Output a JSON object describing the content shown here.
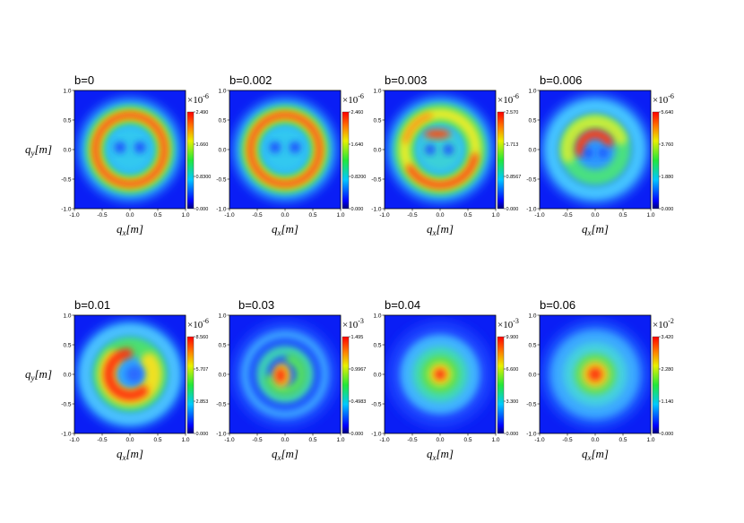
{
  "chart_data": [
    {
      "type": "heatmap",
      "title": "b=0",
      "xlabel": "q_x[m]",
      "ylabel": "q_y[m]",
      "xlim": [
        -1.0,
        1.0
      ],
      "ylim": [
        -1.0,
        1.0
      ],
      "x_ticks": [
        "-1.0",
        "-0.5",
        "0.0",
        "0.5",
        "1.0"
      ],
      "y_ticks": [
        "1.0",
        "0.5",
        "0.0",
        "-0.5",
        "-1.0"
      ],
      "colorbar": {
        "multiplier": "×10",
        "exponent": "-6",
        "ticks": [
          "2.490",
          "1.660",
          "0.8300",
          "0.000"
        ],
        "max": 2.49
      },
      "pattern": "ring with two inner spots"
    },
    {
      "type": "heatmap",
      "title": "b=0.002",
      "xlabel": "q_x[m]",
      "ylabel": "",
      "xlim": [
        -1.0,
        1.0
      ],
      "ylim": [
        -1.0,
        1.0
      ],
      "x_ticks": [
        "-1.0",
        "-0.5",
        "0.0",
        "0.5",
        "1.0"
      ],
      "y_ticks": [
        "1.0",
        "0.5",
        "0.0",
        "-0.5",
        "-1.0"
      ],
      "colorbar": {
        "multiplier": "×10",
        "exponent": "-6",
        "ticks": [
          "2.460",
          "1.640",
          "0.8200",
          "0.000"
        ],
        "max": 2.46
      },
      "pattern": "ring with two inner spots"
    },
    {
      "type": "heatmap",
      "title": "b=0.003",
      "xlabel": "q_x[m]",
      "ylabel": "",
      "xlim": [
        -1.0,
        1.0
      ],
      "ylim": [
        -1.0,
        1.0
      ],
      "x_ticks": [
        "-1.0",
        "-0.5",
        "0.0",
        "0.5",
        "1.0"
      ],
      "y_ticks": [
        "1.0",
        "0.5",
        "0.0",
        "-0.5",
        "-1.0"
      ],
      "colorbar": {
        "multiplier": "×10",
        "exponent": "-6",
        "ticks": [
          "2.570",
          "1.713",
          "0.8567",
          "0.000"
        ],
        "max": 2.57
      },
      "pattern": "distorted ring"
    },
    {
      "type": "heatmap",
      "title": "b=0.006",
      "xlabel": "q_x[m]",
      "ylabel": "",
      "xlim": [
        -1.0,
        1.0
      ],
      "ylim": [
        -1.0,
        1.0
      ],
      "x_ticks": [
        "-1.0",
        "-0.5",
        "0.0",
        "0.5",
        "1.0"
      ],
      "y_ticks": [
        "1.0",
        "0.5",
        "0.0",
        "-0.5",
        "-1.0"
      ],
      "colorbar": {
        "multiplier": "×10",
        "exponent": "-6",
        "ticks": [
          "5.640",
          "3.760",
          "1.880",
          "0.000"
        ],
        "max": 5.64
      },
      "pattern": "spiral"
    },
    {
      "type": "heatmap",
      "title": "b=0.01",
      "xlabel": "q_x[m]",
      "ylabel": "q_y[m]",
      "xlim": [
        -1.0,
        1.0
      ],
      "ylim": [
        -1.0,
        1.0
      ],
      "x_ticks": [
        "-1.0",
        "-0.5",
        "0.0",
        "0.5",
        "1.0"
      ],
      "y_ticks": [
        "1.0",
        "0.5",
        "0.0",
        "-0.5",
        "-1.0"
      ],
      "colorbar": {
        "multiplier": "×10",
        "exponent": "-6",
        "ticks": [
          "8.560",
          "5.707",
          "2.853",
          "0.000"
        ],
        "max": 8.56
      },
      "pattern": "crescent"
    },
    {
      "type": "heatmap",
      "title": "b=0.03",
      "xlabel": "q_x[m]",
      "ylabel": "",
      "xlim": [
        -1.0,
        1.0
      ],
      "ylim": [
        -1.0,
        1.0
      ],
      "x_ticks": [
        "-1.0",
        "-0.5",
        "0.0",
        "0.5",
        "1.0"
      ],
      "y_ticks": [
        "1.0",
        "0.5",
        "0.0",
        "-0.5",
        "-1.0"
      ],
      "colorbar": {
        "multiplier": "×10",
        "exponent": "-3",
        "ticks": [
          "1.495",
          "0.9967",
          "0.4983",
          "0.000"
        ],
        "max": 1.495
      },
      "pattern": "small spiral"
    },
    {
      "type": "heatmap",
      "title": "b=0.04",
      "xlabel": "q_x[m]",
      "ylabel": "",
      "xlim": [
        -1.0,
        1.0
      ],
      "ylim": [
        -1.0,
        1.0
      ],
      "x_ticks": [
        "-1.0",
        "-0.5",
        "0.0",
        "0.5",
        "1.0"
      ],
      "y_ticks": [
        "1.0",
        "0.5",
        "0.0",
        "-0.5",
        "-1.0"
      ],
      "colorbar": {
        "multiplier": "×10",
        "exponent": "-3",
        "ticks": [
          "9.900",
          "6.600",
          "3.300",
          "0.000"
        ],
        "max": 9.9
      },
      "pattern": "central spot"
    },
    {
      "type": "heatmap",
      "title": "b=0.06",
      "xlabel": "q_x[m]",
      "ylabel": "",
      "xlim": [
        -1.0,
        1.0
      ],
      "ylim": [
        -1.0,
        1.0
      ],
      "x_ticks": [
        "-1.0",
        "-0.5",
        "0.0",
        "0.5",
        "1.0"
      ],
      "y_ticks": [
        "1.0",
        "0.5",
        "0.0",
        "-0.5",
        "-1.0"
      ],
      "colorbar": {
        "multiplier": "×10",
        "exponent": "-2",
        "ticks": [
          "3.420",
          "2.280",
          "1.140",
          "0.000"
        ],
        "max": 3.42
      },
      "pattern": "broad spot"
    }
  ],
  "colors": {
    "low": "#1a22ff",
    "mid": "#22dd44",
    "high": "#ff2200",
    "background": "#ffffff"
  }
}
